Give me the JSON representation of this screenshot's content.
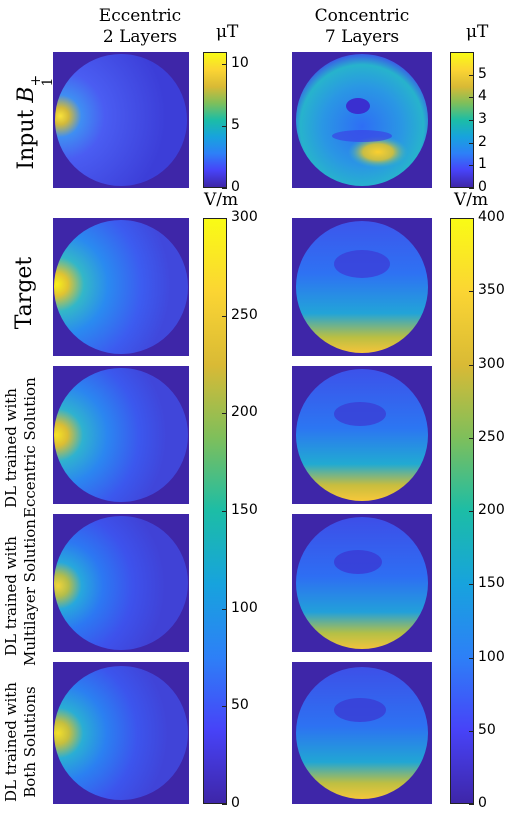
{
  "columns": [
    {
      "title_line1": "Eccentric",
      "title_line2": "2 Layers"
    },
    {
      "title_line1": "Concentric",
      "title_line2": "7 Layers"
    }
  ],
  "rows": [
    {
      "label_line1": "Input",
      "label_b": "B",
      "label_sup": "+",
      "label_sub": "1"
    },
    {
      "label_line1": "Target",
      "label_line2": ""
    },
    {
      "label_line1": "DL trained with",
      "label_line2": "Eccentric Solution"
    },
    {
      "label_line1": "DL trained with",
      "label_line2": "Multilayer Solution"
    },
    {
      "label_line1": "DL trained with",
      "label_line2": "Both Solutions"
    }
  ],
  "colorbars": {
    "b1_left": {
      "unit": "μT",
      "min": 0,
      "max": 11,
      "ticks": [
        "0",
        "5",
        "10"
      ],
      "tick_values": [
        0,
        5,
        10
      ]
    },
    "b1_right": {
      "unit": "μT",
      "min": 0,
      "max": 6,
      "ticks": [
        "0",
        "1",
        "2",
        "3",
        "4",
        "5"
      ],
      "tick_values": [
        0,
        1,
        2,
        3,
        4,
        5
      ]
    },
    "e_left": {
      "unit": "V/m",
      "min": 0,
      "max": 300,
      "ticks": [
        "0",
        "50",
        "100",
        "150",
        "200",
        "250",
        "300"
      ],
      "tick_values": [
        0,
        50,
        100,
        150,
        200,
        250,
        300
      ]
    },
    "e_right": {
      "unit": "V/m",
      "min": 0,
      "max": 400,
      "ticks": [
        "0",
        "50",
        "100",
        "150",
        "200",
        "250",
        "300",
        "350",
        "400"
      ],
      "tick_values": [
        0,
        50,
        100,
        150,
        200,
        250,
        300,
        350,
        400
      ]
    }
  },
  "colormap": [
    "#3e26a8",
    "#4743f8",
    "#2d80f7",
    "#17a3dd",
    "#1cbda6",
    "#7ebf5b",
    "#d9ba35",
    "#fbd533",
    "#f9fb15"
  ]
}
